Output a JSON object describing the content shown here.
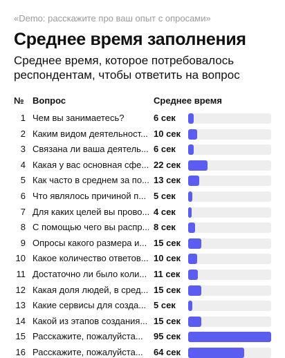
{
  "header": {
    "demo": "«Demo: расскажите про ваш опыт с опросами»",
    "title": "Среднее время заполнения",
    "subtitle": "Среднее время, которое потребовалось респондентам, чтобы ответить на вопрос"
  },
  "table": {
    "columns": [
      "№",
      "Вопрос",
      "Среднее время"
    ],
    "bar_color": "#5b5cf0",
    "track_color": "#eeeeef",
    "rows": [
      {
        "n": 1,
        "question": "Чем вы занимаетесь?",
        "value": 6,
        "label": "6 сек"
      },
      {
        "n": 2,
        "question": "Каким видом деятельност...",
        "value": 10,
        "label": "10 сек"
      },
      {
        "n": 3,
        "question": "Связана ли ваша деятель...",
        "value": 6,
        "label": "6 сек"
      },
      {
        "n": 4,
        "question": "Какая у вас основная сфе...",
        "value": 22,
        "label": "22 сек"
      },
      {
        "n": 5,
        "question": "Как часто в среднем за по...",
        "value": 13,
        "label": "13 сек"
      },
      {
        "n": 6,
        "question": "Что являлось причиной п...",
        "value": 5,
        "label": "5 сек"
      },
      {
        "n": 7,
        "question": "Для каких целей вы прово...",
        "value": 4,
        "label": "4 сек"
      },
      {
        "n": 8,
        "question": "С помощью чего вы распр...",
        "value": 8,
        "label": "8 сек"
      },
      {
        "n": 9,
        "question": "Опросы какого размера и...",
        "value": 15,
        "label": "15 сек"
      },
      {
        "n": 10,
        "question": "Какое количество ответов...",
        "value": 10,
        "label": "10 сек"
      },
      {
        "n": 11,
        "question": "Достаточно ли было коли...",
        "value": 11,
        "label": "11 сек"
      },
      {
        "n": 12,
        "question": "Какая доля людей, в сред...",
        "value": 15,
        "label": "15 сек"
      },
      {
        "n": 13,
        "question": "Какие сервисы для созда...",
        "value": 5,
        "label": "5 сек"
      },
      {
        "n": 14,
        "question": "Какой из этапов создания...",
        "value": 15,
        "label": "15 сек"
      },
      {
        "n": 15,
        "question": "Расскажите, пожалуйста...",
        "value": 95,
        "label": "95 сек"
      },
      {
        "n": 16,
        "question": "Расскажите, пожалуйста...",
        "value": 64,
        "label": "64 сек"
      }
    ]
  }
}
